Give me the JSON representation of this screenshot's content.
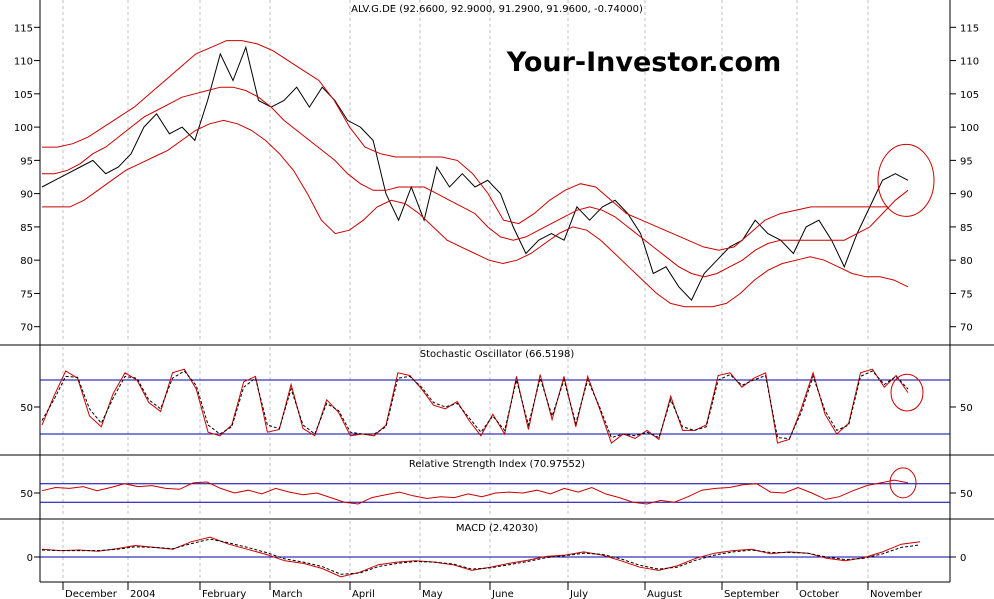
{
  "brand": "Your-Investor.com",
  "colors": {
    "price": "#000000",
    "bands": "#cc0000",
    "oscillator": "#cc0000",
    "signal": "#000000",
    "levels": "#0000aa",
    "grid": "#c0c0c0",
    "highlight_circle": "#cc0000"
  },
  "chart_data": [
    {
      "id": "price",
      "type": "line",
      "title": "ALV.G.DE (92.6600, 92.9000, 91.2900, 91.9600, -0.74000)",
      "ylim": [
        68,
        117
      ],
      "yticks": [
        70,
        75,
        80,
        85,
        90,
        95,
        100,
        105,
        110,
        115
      ],
      "series": [
        {
          "values": [
            91,
            92,
            93,
            94,
            95,
            93,
            94,
            96,
            100,
            102,
            99,
            100,
            98,
            104,
            111,
            107,
            112,
            104,
            103,
            104,
            106,
            103,
            106,
            104,
            101,
            100,
            98,
            90,
            86,
            91,
            86,
            94,
            91,
            93,
            91,
            92,
            90,
            85,
            81,
            83,
            84,
            83,
            88,
            86,
            88,
            89,
            87,
            84,
            78,
            79,
            76,
            74,
            78,
            80,
            82,
            83,
            86,
            84,
            83,
            81,
            85,
            86,
            83,
            79,
            84,
            88,
            92,
            93,
            92
          ]
        },
        {
          "values": [
            93,
            93,
            93.5,
            94.5,
            96,
            97,
            98.5,
            100,
            101.5,
            102.5,
            103.5,
            104.5,
            105,
            105.5,
            106,
            106,
            105.5,
            104.5,
            103,
            101,
            99.5,
            98,
            96.5,
            95,
            93,
            91.5,
            90.5,
            90.5,
            91,
            91,
            91,
            90,
            89,
            88,
            87,
            85,
            83.5,
            83,
            83.5,
            84.5,
            85.5,
            86.5,
            87.5,
            88,
            87.5,
            86.5,
            85,
            83.5,
            82,
            80.5,
            79,
            78,
            77.5,
            78,
            79,
            80,
            81.5,
            82.5,
            83,
            83,
            83,
            83,
            83,
            83,
            84,
            85,
            87,
            89,
            90.5
          ]
        },
        {
          "values": [
            97,
            97,
            97.5,
            98.5,
            100,
            101.5,
            103,
            105,
            107,
            109,
            111,
            112,
            113,
            113,
            112.5,
            111.5,
            110,
            108.5,
            107,
            104,
            100,
            97,
            96,
            95.5,
            95.5,
            95.5,
            95.5,
            95,
            93,
            90,
            86,
            85.5,
            87,
            89,
            90.5,
            91.5,
            91,
            89,
            87,
            86,
            85,
            84,
            83,
            82,
            81.5,
            82,
            84,
            86,
            87,
            87.5,
            88,
            88,
            88,
            88,
            88,
            88
          ]
        },
        {
          "values": [
            88,
            88,
            88,
            89,
            90.5,
            92,
            93.5,
            94.5,
            95.5,
            96.5,
            98,
            99.5,
            100.5,
            101,
            100.5,
            99.5,
            98,
            96,
            93.5,
            90,
            86,
            84,
            84.5,
            86,
            88,
            89,
            88.5,
            87,
            85,
            83,
            82,
            81,
            80,
            79.5,
            80,
            81,
            82.5,
            84,
            85,
            84.5,
            83,
            81,
            79,
            77,
            75,
            73.5,
            73,
            73,
            73,
            73.5,
            75,
            77,
            78.5,
            79.5,
            80,
            80.5,
            80,
            79,
            78,
            77.5,
            77.5,
            77,
            76
          ]
        }
      ],
      "annotation": "circle"
    },
    {
      "id": "stochastic",
      "type": "line",
      "title": "Stochastic Oscillator (66.5198)",
      "ylim": [
        0,
        100
      ],
      "yticks": [
        50
      ],
      "levels": [
        20,
        80
      ],
      "series": [
        {
          "values": [
            30,
            62,
            90,
            82,
            40,
            28,
            65,
            88,
            80,
            55,
            45,
            88,
            92,
            70,
            22,
            18,
            30,
            78,
            84,
            22,
            25,
            75,
            26,
            18,
            58,
            44,
            18,
            20,
            18,
            30,
            88,
            85,
            70,
            52,
            48,
            56,
            35,
            18,
            42,
            20,
            84,
            25,
            86,
            36,
            84,
            28,
            84,
            48,
            10,
            20,
            15,
            24,
            14,
            62,
            24,
            24,
            30,
            85,
            88,
            72,
            82,
            88,
            10,
            14,
            48,
            88,
            42,
            20,
            32,
            88,
            92,
            72,
            85,
            66
          ]
        },
        {
          "values": [
            35,
            58,
            84,
            83,
            48,
            32,
            60,
            84,
            82,
            58,
            48,
            82,
            90,
            74,
            30,
            20,
            28,
            72,
            82,
            30,
            26,
            70,
            30,
            20,
            54,
            46,
            22,
            20,
            20,
            28,
            82,
            84,
            72,
            55,
            50,
            54,
            38,
            22,
            40,
            24,
            80,
            30,
            82,
            40,
            80,
            32,
            80,
            50,
            16,
            20,
            18,
            22,
            16,
            58,
            28,
            24,
            28,
            80,
            86,
            74,
            80,
            85,
            16,
            15,
            44,
            84,
            46,
            24,
            30,
            84,
            90,
            75,
            84,
            70
          ]
        }
      ],
      "annotation": "circle"
    },
    {
      "id": "rsi",
      "type": "line",
      "title": "Relative Strength Index (70.97552)",
      "ylim": [
        0,
        100
      ],
      "yticks": [
        50
      ],
      "levels": [
        30,
        70
      ],
      "series": [
        {
          "values": [
            55,
            62,
            60,
            64,
            55,
            62,
            70,
            64,
            66,
            60,
            58,
            72,
            74,
            60,
            50,
            56,
            48,
            60,
            52,
            46,
            50,
            40,
            30,
            26,
            40,
            46,
            52,
            44,
            38,
            42,
            40,
            48,
            42,
            50,
            52,
            50,
            56,
            48,
            60,
            52,
            62,
            48,
            40,
            30,
            26,
            34,
            30,
            42,
            56,
            60,
            62,
            68,
            70,
            52,
            50,
            62,
            50,
            36,
            42,
            55,
            66,
            72,
            78,
            72
          ]
        }
      ],
      "annotation": "circle"
    },
    {
      "id": "macd",
      "type": "line",
      "title": "MACD (2.42030)",
      "ylim": [
        -3.6,
        3.6
      ],
      "yticks": [
        0
      ],
      "levels": [
        0
      ],
      "series": [
        {
          "values": [
            1.2,
            1.0,
            1.1,
            0.9,
            1.3,
            1.8,
            1.5,
            1.2,
            2.4,
            3.1,
            2.0,
            1.2,
            0.4,
            -0.6,
            -1.0,
            -1.8,
            -3.1,
            -2.4,
            -1.2,
            -0.8,
            -0.6,
            -0.8,
            -1.2,
            -2.1,
            -1.6,
            -1.0,
            -0.5,
            0.1,
            0.3,
            0.8,
            0.3,
            -0.6,
            -1.6,
            -2.1,
            -1.4,
            -0.2,
            0.6,
            1.0,
            1.2,
            0.5,
            0.8,
            0.6,
            -0.2,
            -0.6,
            -0.1,
            0.8,
            2.0,
            2.4
          ]
        },
        {
          "values": [
            1.1,
            1.0,
            1.0,
            1.0,
            1.2,
            1.6,
            1.5,
            1.3,
            2.1,
            2.8,
            2.2,
            1.5,
            0.7,
            -0.3,
            -0.8,
            -1.5,
            -2.7,
            -2.5,
            -1.5,
            -1.0,
            -0.7,
            -0.8,
            -1.1,
            -1.9,
            -1.7,
            -1.2,
            -0.7,
            -0.1,
            0.2,
            0.6,
            0.4,
            -0.3,
            -1.3,
            -1.9,
            -1.6,
            -0.5,
            0.3,
            0.8,
            1.1,
            0.7,
            0.7,
            0.6,
            0.0,
            -0.4,
            -0.2,
            0.5,
            1.5,
            1.9
          ]
        }
      ]
    }
  ],
  "x_axis": {
    "labels": [
      "December",
      "2004",
      "February",
      "March",
      "April",
      "May",
      "June",
      "July",
      "August",
      "September",
      "October",
      "November"
    ]
  }
}
